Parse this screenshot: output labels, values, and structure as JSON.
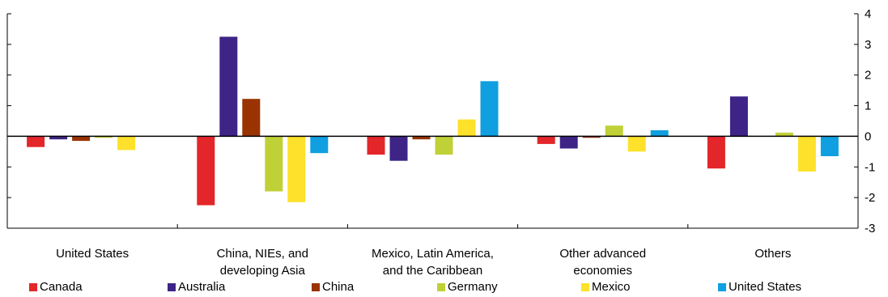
{
  "chart_data": {
    "type": "bar",
    "categories": [
      [
        "United States"
      ],
      [
        "China, NIEs, and",
        "developing Asia"
      ],
      [
        "Mexico, Latin America,",
        "and the Caribbean"
      ],
      [
        "Other advanced",
        "economies"
      ],
      [
        "Others"
      ]
    ],
    "series": [
      {
        "name": "Canada",
        "color": "#e3262a",
        "values": [
          -0.35,
          -2.25,
          -0.6,
          -0.25,
          -1.05
        ]
      },
      {
        "name": "Australia",
        "color": "#3d2486",
        "values": [
          -0.1,
          3.25,
          -0.8,
          -0.4,
          1.3
        ]
      },
      {
        "name": "China",
        "color": "#993300",
        "values": [
          -0.15,
          1.22,
          -0.1,
          -0.05,
          0.0
        ]
      },
      {
        "name": "Germany",
        "color": "#bfd136",
        "values": [
          -0.05,
          -1.8,
          -0.6,
          0.35,
          0.12
        ]
      },
      {
        "name": "Mexico",
        "color": "#fde12a",
        "values": [
          -0.45,
          -2.15,
          0.55,
          -0.5,
          -1.15
        ]
      },
      {
        "name": "United States",
        "color": "#109fe0",
        "values": [
          0.0,
          -0.55,
          1.8,
          0.2,
          -0.65
        ]
      }
    ],
    "ylim": [
      -3,
      4
    ],
    "yticks": [
      "4",
      "3",
      "2",
      "1",
      "0",
      "-1",
      "-2",
      "-3"
    ],
    "title": "",
    "xlabel": "",
    "ylabel": "",
    "legend": "bottom"
  }
}
